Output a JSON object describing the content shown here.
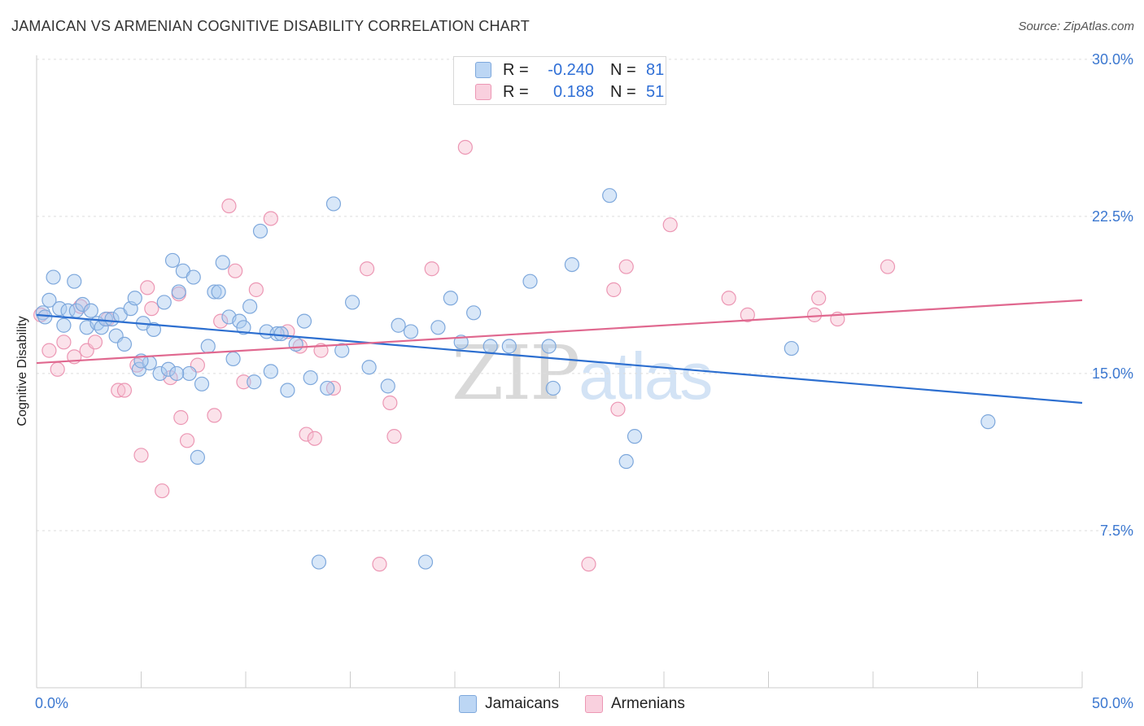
{
  "title": "JAMAICAN VS ARMENIAN COGNITIVE DISABILITY CORRELATION CHART",
  "source": "Source: ZipAtlas.com",
  "watermark": {
    "zip": "ZIP",
    "atlas": "atlas"
  },
  "legend_top": [
    {
      "r_label": "R =",
      "r_value": "-0.240",
      "n_label": "N =",
      "n_value": "81"
    },
    {
      "r_label": "R =",
      "r_value": "0.188",
      "n_label": "N =",
      "n_value": "51"
    }
  ],
  "colors": {
    "jamaicans_fill": "#a9c9ef",
    "jamaicans_stroke": "#7ea8dc",
    "jamaicans_line": "#2d6fd0",
    "armenians_fill": "#f6bfd1",
    "armenians_stroke": "#ec97b4",
    "armenians_line": "#e0688f",
    "tick_label": "#3c78d0",
    "grid": "#dddddd"
  },
  "chart_data": {
    "type": "scatter",
    "title": "JAMAICAN VS ARMENIAN COGNITIVE DISABILITY CORRELATION CHART",
    "xlabel": "",
    "ylabel": "Cognitive Disability",
    "xlim": [
      0,
      50
    ],
    "ylim": [
      0,
      30.5
    ],
    "x_tick_labels": [
      "0.0%",
      "50.0%"
    ],
    "y_ticks": [
      7.5,
      15.0,
      22.5,
      30.0
    ],
    "y_tick_labels": [
      "7.5%",
      "15.0%",
      "22.5%",
      "30.0%"
    ],
    "grid": "horizontal dashed",
    "legend": "top-center and bottom-center",
    "series": [
      {
        "name": "Jamaicans",
        "r": -0.24,
        "n": 81,
        "trend": [
          [
            0,
            17.8
          ],
          [
            50,
            13.6
          ]
        ],
        "points": [
          [
            0.3,
            17.9
          ],
          [
            0.4,
            17.7
          ],
          [
            0.6,
            18.5
          ],
          [
            0.8,
            19.6
          ],
          [
            1.1,
            18.1
          ],
          [
            1.3,
            17.3
          ],
          [
            1.5,
            18.0
          ],
          [
            1.8,
            19.4
          ],
          [
            1.9,
            18.0
          ],
          [
            2.2,
            18.3
          ],
          [
            2.4,
            17.2
          ],
          [
            2.6,
            18.0
          ],
          [
            2.9,
            17.4
          ],
          [
            3.1,
            17.2
          ],
          [
            3.3,
            17.6
          ],
          [
            3.6,
            17.6
          ],
          [
            3.8,
            16.8
          ],
          [
            4.0,
            17.8
          ],
          [
            4.2,
            16.4
          ],
          [
            4.5,
            18.1
          ],
          [
            4.7,
            18.6
          ],
          [
            4.9,
            15.2
          ],
          [
            5.1,
            17.4
          ],
          [
            5.4,
            15.5
          ],
          [
            5.6,
            17.1
          ],
          [
            5.9,
            15.0
          ],
          [
            6.1,
            18.4
          ],
          [
            6.3,
            15.2
          ],
          [
            6.5,
            20.4
          ],
          [
            6.8,
            18.9
          ],
          [
            7.0,
            19.9
          ],
          [
            7.3,
            15.0
          ],
          [
            7.5,
            19.6
          ],
          [
            7.7,
            11.0
          ],
          [
            7.9,
            14.5
          ],
          [
            8.2,
            16.3
          ],
          [
            8.5,
            18.9
          ],
          [
            8.7,
            18.9
          ],
          [
            8.9,
            20.3
          ],
          [
            9.2,
            17.7
          ],
          [
            9.4,
            15.7
          ],
          [
            9.7,
            17.5
          ],
          [
            9.9,
            17.2
          ],
          [
            10.2,
            18.2
          ],
          [
            10.4,
            14.6
          ],
          [
            10.7,
            21.8
          ],
          [
            11.0,
            17.0
          ],
          [
            11.2,
            15.1
          ],
          [
            11.5,
            16.9
          ],
          [
            11.7,
            16.9
          ],
          [
            12.0,
            14.2
          ],
          [
            12.4,
            16.4
          ],
          [
            12.8,
            17.5
          ],
          [
            13.1,
            14.8
          ],
          [
            13.5,
            6.0
          ],
          [
            13.9,
            14.3
          ],
          [
            14.2,
            23.1
          ],
          [
            14.6,
            16.1
          ],
          [
            15.1,
            18.4
          ],
          [
            15.9,
            15.3
          ],
          [
            16.8,
            14.4
          ],
          [
            17.3,
            17.3
          ],
          [
            17.9,
            17.0
          ],
          [
            18.6,
            6.0
          ],
          [
            19.2,
            17.2
          ],
          [
            19.8,
            18.6
          ],
          [
            20.3,
            16.5
          ],
          [
            20.9,
            17.9
          ],
          [
            21.7,
            16.3
          ],
          [
            22.6,
            16.3
          ],
          [
            23.6,
            19.4
          ],
          [
            24.5,
            16.3
          ],
          [
            24.7,
            14.3
          ],
          [
            25.6,
            20.2
          ],
          [
            27.4,
            23.5
          ],
          [
            28.2,
            10.8
          ],
          [
            28.6,
            12.0
          ],
          [
            36.1,
            16.2
          ],
          [
            45.5,
            12.7
          ],
          [
            5.0,
            15.6
          ],
          [
            6.7,
            15.0
          ]
        ]
      },
      {
        "name": "Armenians",
        "r": 0.188,
        "n": 51,
        "trend": [
          [
            0,
            15.5
          ],
          [
            50,
            18.5
          ]
        ],
        "points": [
          [
            0.2,
            17.8
          ],
          [
            0.6,
            16.1
          ],
          [
            1.0,
            15.2
          ],
          [
            1.3,
            16.5
          ],
          [
            1.8,
            15.8
          ],
          [
            2.1,
            18.2
          ],
          [
            2.4,
            16.1
          ],
          [
            2.8,
            16.5
          ],
          [
            3.4,
            17.6
          ],
          [
            3.9,
            14.2
          ],
          [
            4.2,
            14.2
          ],
          [
            4.8,
            15.4
          ],
          [
            5.0,
            11.1
          ],
          [
            5.3,
            19.1
          ],
          [
            5.5,
            18.1
          ],
          [
            6.0,
            9.4
          ],
          [
            6.4,
            14.8
          ],
          [
            6.8,
            18.8
          ],
          [
            6.9,
            12.9
          ],
          [
            7.2,
            11.8
          ],
          [
            7.7,
            15.4
          ],
          [
            8.5,
            13.0
          ],
          [
            8.8,
            17.5
          ],
          [
            9.2,
            23.0
          ],
          [
            9.5,
            19.9
          ],
          [
            9.9,
            14.6
          ],
          [
            10.5,
            19.0
          ],
          [
            11.2,
            22.4
          ],
          [
            12.0,
            17.0
          ],
          [
            12.6,
            16.3
          ],
          [
            12.9,
            12.1
          ],
          [
            13.3,
            11.9
          ],
          [
            13.6,
            16.1
          ],
          [
            14.2,
            14.3
          ],
          [
            15.8,
            20.0
          ],
          [
            16.4,
            5.9
          ],
          [
            16.9,
            13.6
          ],
          [
            17.1,
            12.0
          ],
          [
            18.9,
            20.0
          ],
          [
            20.5,
            25.8
          ],
          [
            26.4,
            5.9
          ],
          [
            27.6,
            19.0
          ],
          [
            27.8,
            13.3
          ],
          [
            28.2,
            20.1
          ],
          [
            30.3,
            22.1
          ],
          [
            33.1,
            18.6
          ],
          [
            34.0,
            17.8
          ],
          [
            37.2,
            17.8
          ],
          [
            37.4,
            18.6
          ],
          [
            38.3,
            17.6
          ],
          [
            40.7,
            20.1
          ]
        ]
      }
    ]
  },
  "legend_bottom": [
    "Jamaicans",
    "Armenians"
  ]
}
